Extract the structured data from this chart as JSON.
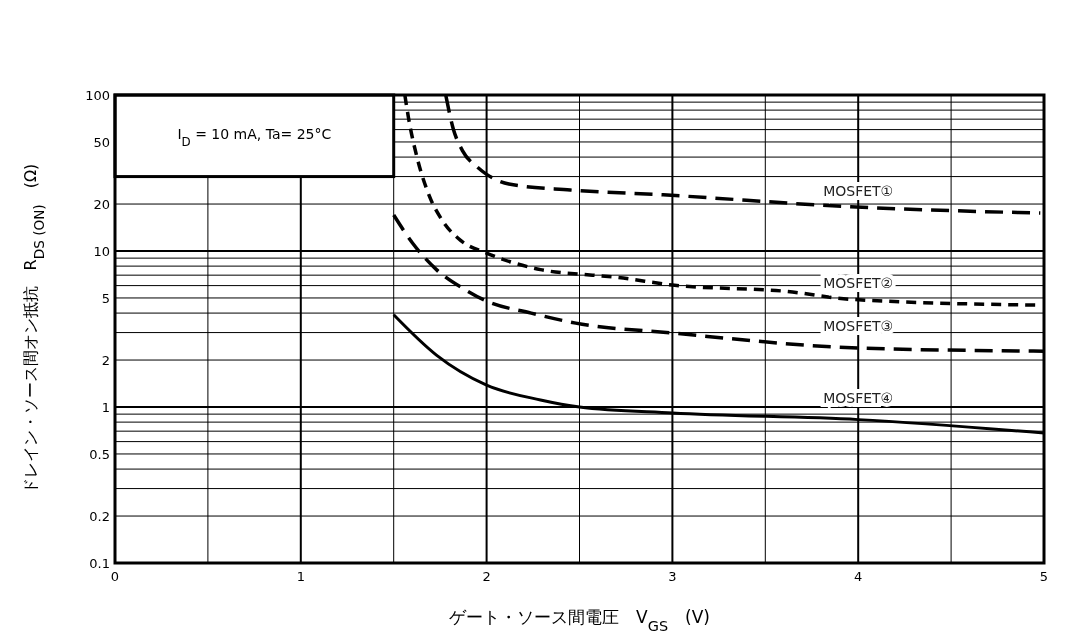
{
  "chart_data": {
    "type": "line",
    "xlabel": "ゲート・ソース間電圧　V$_{GS}$　(V)",
    "ylabel": "ドレイン・ソース間オン抵抗　R$_{DS (ON)}$　(Ω)",
    "annotations": [
      "I$_{D}$ = 10 mA, Ta= 25°C"
    ],
    "xlim": [
      0,
      5
    ],
    "xticks": [
      0,
      1,
      2,
      3,
      4,
      5
    ],
    "ylim": [
      0.1,
      100
    ],
    "yticks": [
      0.1,
      0.2,
      0.5,
      1,
      2,
      5,
      10,
      20,
      50,
      100
    ],
    "log": "y",
    "grid": true,
    "series": [
      {
        "name": "MOSFET①",
        "color": "#000000",
        "line_style": "dashed",
        "x": [
          1.78,
          1.82,
          1.87,
          1.95,
          2.0,
          2.12,
          2.45,
          2.95,
          3.96,
          4.98
        ],
        "values": [
          100,
          61,
          44,
          34.5,
          31,
          26.9,
          24.6,
          22.9,
          19.2,
          17.5
        ]
      },
      {
        "name": "MOSFET②",
        "color": "#000000",
        "line_style": "dashed",
        "x": [
          1.56,
          1.58,
          1.63,
          1.69,
          1.76,
          1.86,
          2.0,
          2.29,
          2.57,
          2.69,
          3.0,
          3.62,
          3.96,
          4.96
        ],
        "values": [
          100,
          71,
          38,
          22.8,
          15.8,
          11.7,
          9.7,
          7.6,
          7.0,
          6.8,
          6.05,
          5.5,
          4.9,
          4.5
        ]
      },
      {
        "name": "MOSFET③",
        "color": "#000000",
        "line_style": "dashed",
        "x": [
          1.5,
          1.6,
          1.73,
          1.89,
          2.0,
          2.24,
          2.48,
          3.0,
          4.0,
          5.0
        ],
        "values": [
          17,
          11.3,
          7.6,
          5.6,
          4.77,
          4.0,
          3.45,
          2.98,
          2.39,
          2.28
        ]
      },
      {
        "name": "MOSFET④",
        "color": "#000000",
        "line_style": "solid",
        "x": [
          1.5,
          1.73,
          2.0,
          2.29,
          2.5,
          3.0,
          4.0,
          5.0
        ],
        "values": [
          3.9,
          2.15,
          1.38,
          1.11,
          1.0,
          0.915,
          0.83,
          0.68
        ]
      }
    ]
  }
}
